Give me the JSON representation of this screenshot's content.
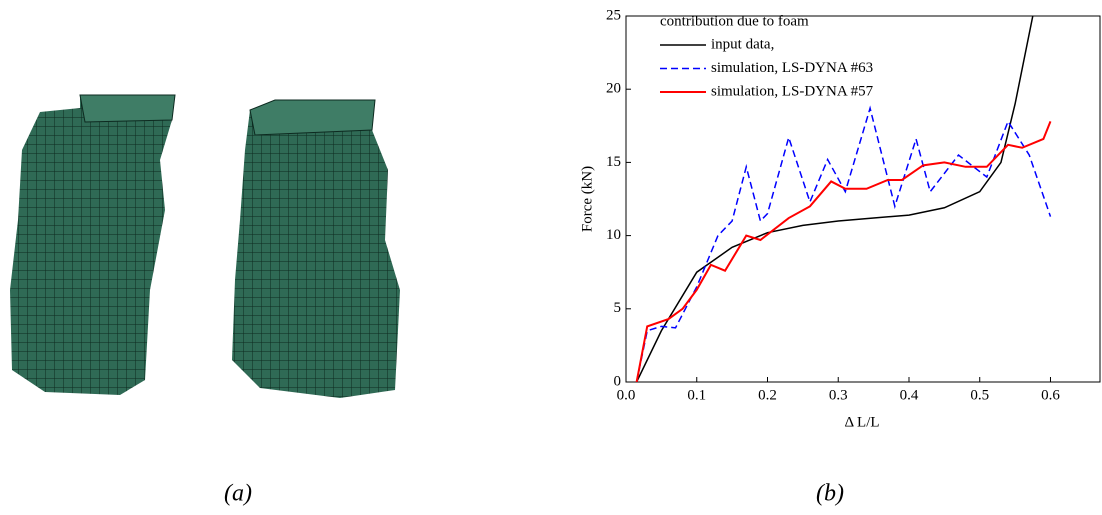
{
  "figure": {
    "captions": [
      "(a)",
      "(b)"
    ]
  },
  "chart_data": {
    "type": "line",
    "x_label": "Δ L/L",
    "y_label": "Force  (kN)",
    "legend_title": "contribution due to foam",
    "xlim": [
      0,
      0.67
    ],
    "ylim": [
      0,
      25
    ],
    "xticks": [
      {
        "value": 0,
        "label": "0.0"
      },
      0.1,
      0.2,
      0.3,
      0.4,
      0.5,
      0.6
    ],
    "yticks": [
      0,
      5,
      10,
      15,
      20,
      25
    ],
    "grid": false,
    "legend": "upper left",
    "series": [
      {
        "name": "input data,",
        "color": "#000000",
        "dash": false,
        "x": [
          0.015,
          0.05,
          0.1,
          0.15,
          0.2,
          0.25,
          0.3,
          0.35,
          0.4,
          0.45,
          0.5,
          0.53,
          0.55,
          0.575
        ],
        "values": [
          0,
          3.5,
          7.5,
          9.2,
          10.2,
          10.7,
          11,
          11.2,
          11.4,
          11.9,
          13,
          15,
          19,
          25
        ]
      },
      {
        "name": "simulation, LS-DYNA #63",
        "color": "#0000ff",
        "dash": true,
        "x": [
          0.015,
          0.03,
          0.05,
          0.07,
          0.1,
          0.13,
          0.15,
          0.17,
          0.19,
          0.2,
          0.23,
          0.26,
          0.285,
          0.31,
          0.345,
          0.38,
          0.41,
          0.43,
          0.47,
          0.51,
          0.54,
          0.57,
          0.6
        ],
        "values": [
          0,
          3.5,
          3.8,
          3.7,
          6.5,
          10,
          11,
          14.7,
          11,
          11.5,
          16.7,
          12.3,
          15.2,
          13,
          18.7,
          12,
          16.6,
          13,
          15.5,
          14,
          17.8,
          15.5,
          11.3
        ]
      },
      {
        "name": "simulation, LS-DYNA #57",
        "color": "#ff0000",
        "dash": false,
        "x": [
          0.015,
          0.03,
          0.06,
          0.08,
          0.1,
          0.12,
          0.14,
          0.17,
          0.19,
          0.23,
          0.26,
          0.29,
          0.31,
          0.34,
          0.37,
          0.39,
          0.42,
          0.45,
          0.48,
          0.51,
          0.54,
          0.56,
          0.59,
          0.6
        ],
        "values": [
          0,
          3.8,
          4.3,
          5,
          6.3,
          8,
          7.6,
          10,
          9.7,
          11.2,
          12,
          13.7,
          13.2,
          13.2,
          13.8,
          13.8,
          14.8,
          15,
          14.7,
          14.7,
          16.2,
          16,
          16.6,
          17.8
        ]
      }
    ]
  }
}
